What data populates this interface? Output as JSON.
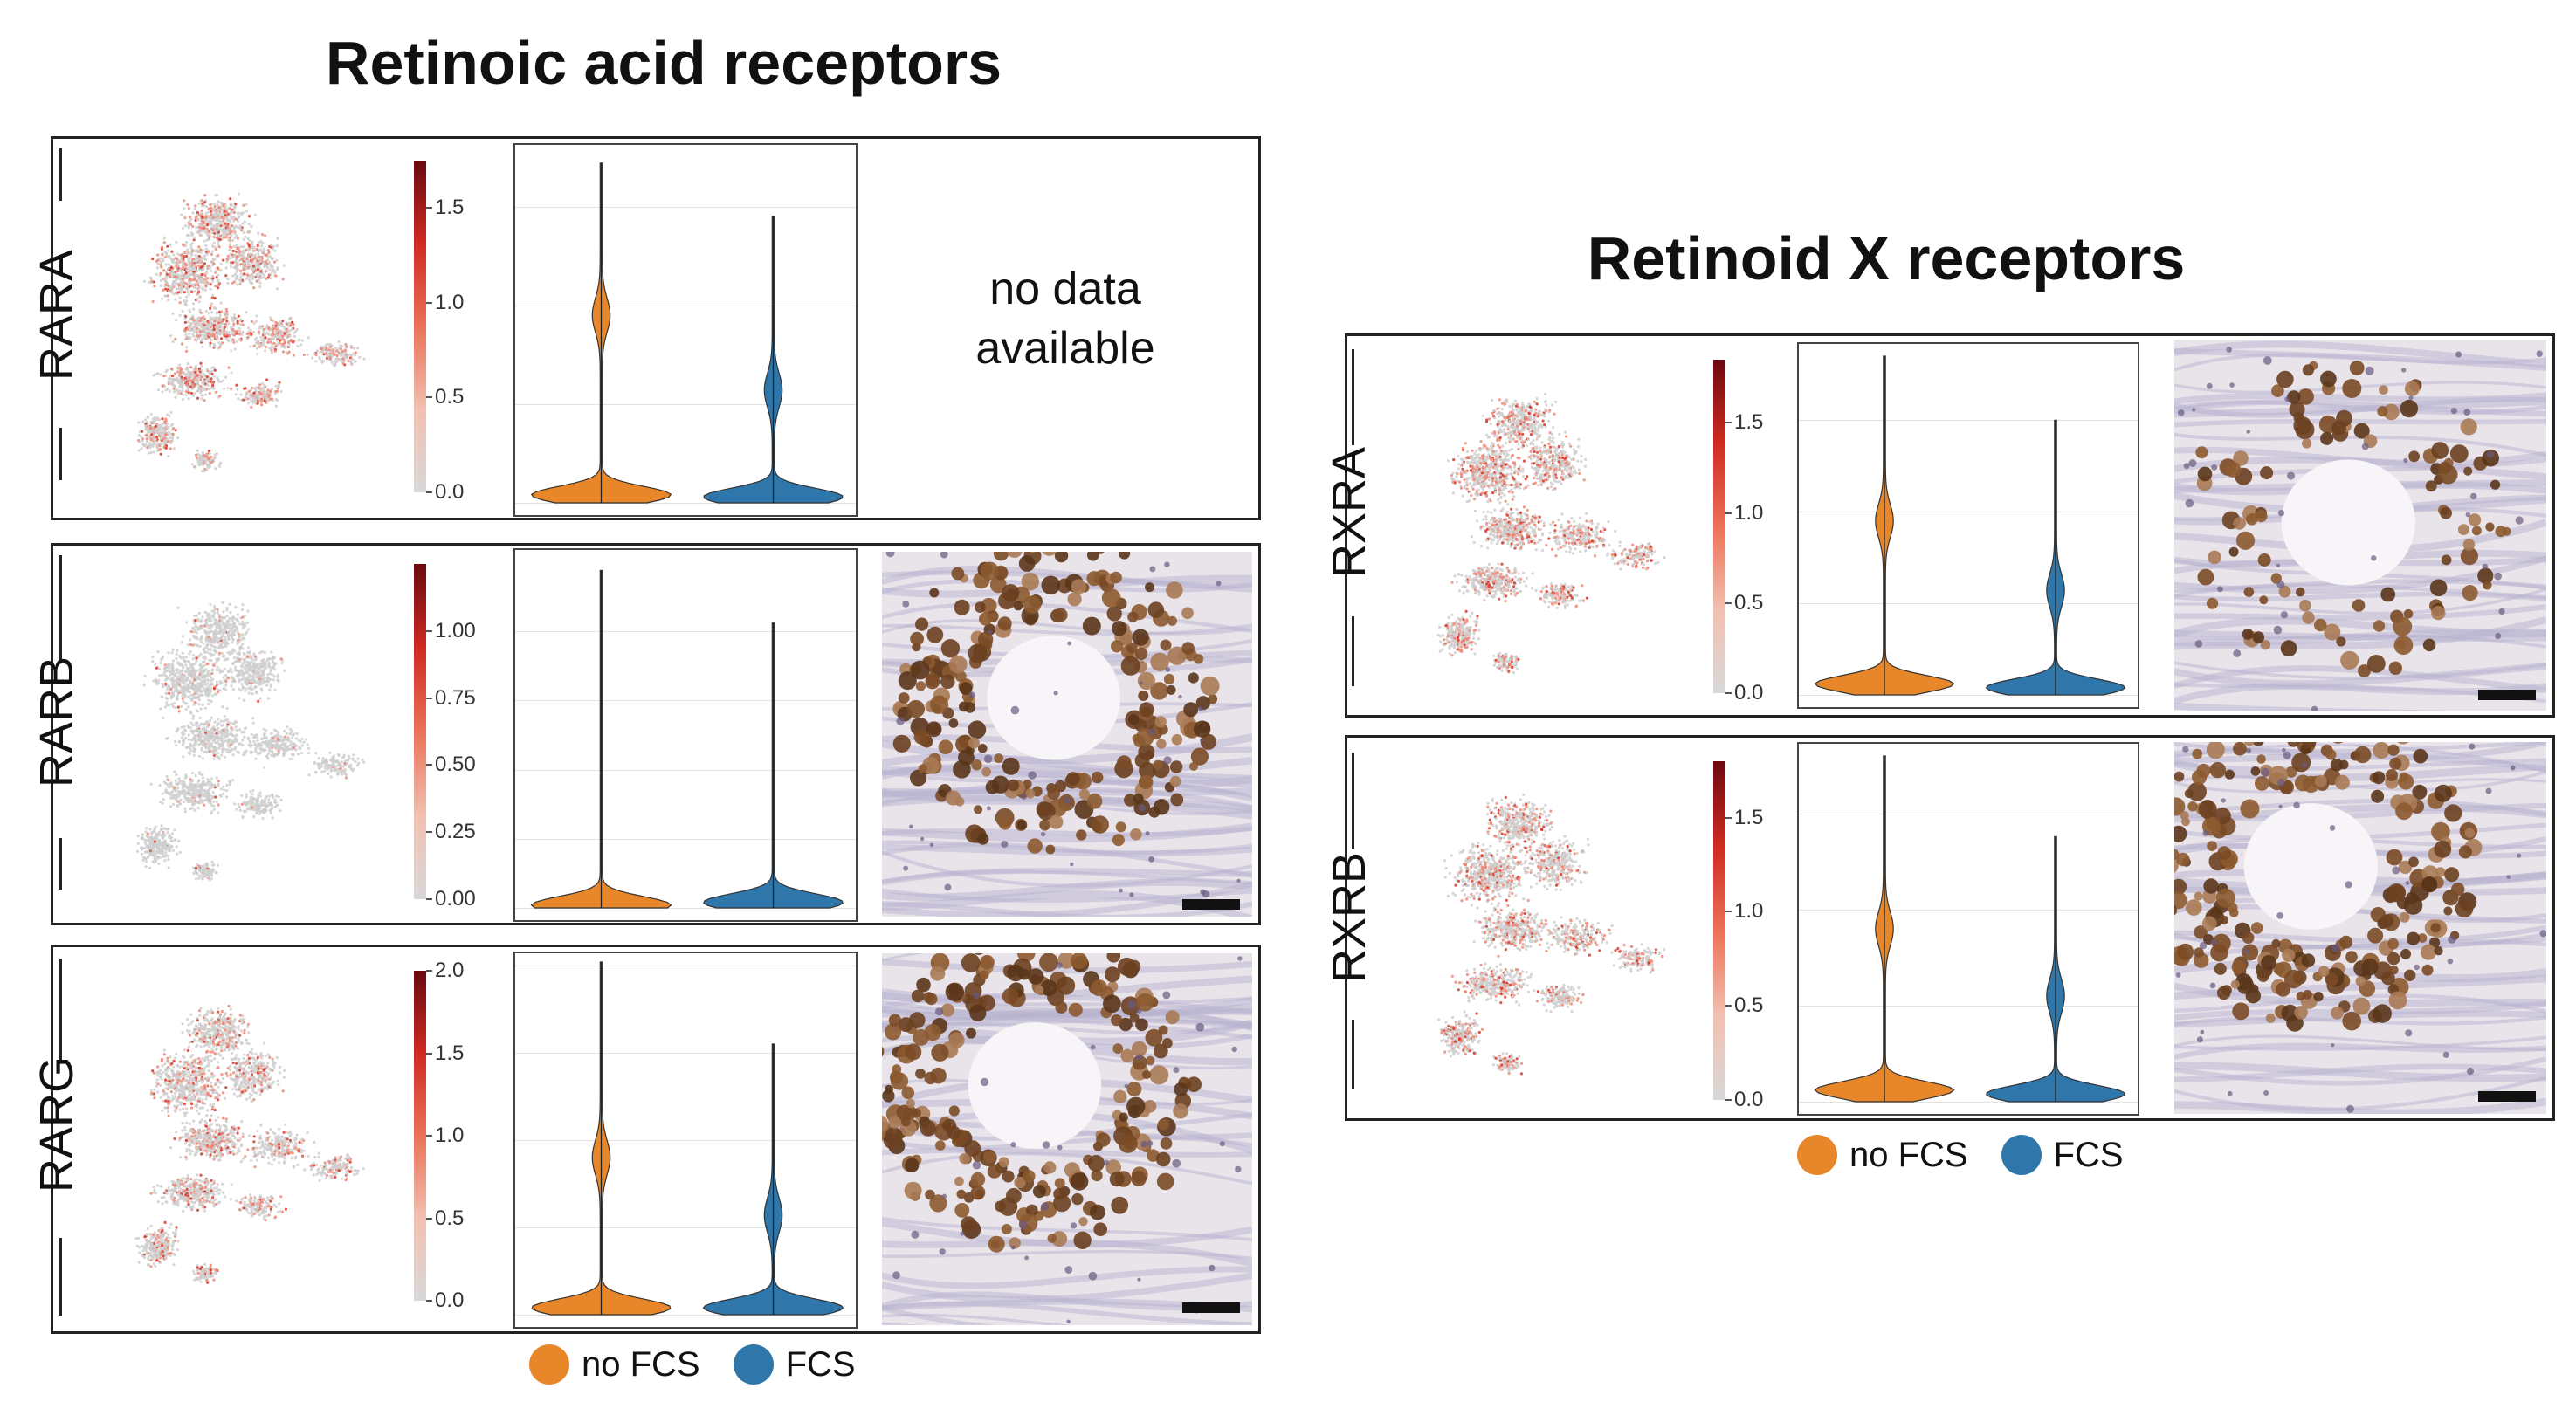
{
  "left_title": "Retinoic acid receptors",
  "right_title": "Retinoid X receptors",
  "colors": {
    "no_fcs": "#e8862a",
    "fcs": "#2f77ab",
    "cmap_low": "#d8d8d8",
    "cmap_high": "#6b0a0f"
  },
  "legend": {
    "no_fcs": "no FCS",
    "fcs": "FCS"
  },
  "panels": [
    {
      "gene": "RARA",
      "ticks": [
        "1.5",
        "1.0",
        "0.5",
        "0.0"
      ],
      "cbar_max": 1.75,
      "no_data": "no data available",
      "no_data_l1": "no data",
      "no_data_l2": "available",
      "umap_intensity": 0.6
    },
    {
      "gene": "RARB",
      "ticks": [
        "1.00",
        "0.75",
        "0.50",
        "0.25",
        "0.00"
      ],
      "cbar_max": 1.25,
      "no_data": "",
      "umap_intensity": 0.08
    },
    {
      "gene": "RARG",
      "ticks": [
        "2.0",
        "1.5",
        "1.0",
        "0.5",
        "0.0"
      ],
      "cbar_max": 2.0,
      "no_data": "",
      "umap_intensity": 0.45
    },
    {
      "gene": "RXRA",
      "ticks": [
        "1.5",
        "1.0",
        "0.5",
        "0.0"
      ],
      "cbar_max": 1.85,
      "no_data": "",
      "umap_intensity": 0.6
    },
    {
      "gene": "RXRB",
      "ticks": [
        "1.5",
        "1.0",
        "0.5",
        "0.0"
      ],
      "cbar_max": 1.8,
      "no_data": "",
      "umap_intensity": 0.5
    }
  ],
  "chart_data": [
    {
      "type": "violin",
      "title": "RARA",
      "categories": [
        "no FCS",
        "FCS"
      ],
      "ylim": [
        0,
        1.75
      ],
      "series": [
        {
          "name": "no FCS",
          "max": 1.72,
          "mode": 0.04,
          "secondary": 0.95
        },
        {
          "name": "FCS",
          "max": 1.45,
          "mode": 0.03,
          "secondary": 0.57
        }
      ]
    },
    {
      "type": "violin",
      "title": "RARB",
      "categories": [
        "no FCS",
        "FCS"
      ],
      "ylim": [
        0,
        1.25
      ],
      "series": [
        {
          "name": "no FCS",
          "max": 1.22,
          "mode": 0.01,
          "secondary": 0.0
        },
        {
          "name": "FCS",
          "max": 1.03,
          "mode": 0.02,
          "secondary": 0.0
        }
      ]
    },
    {
      "type": "violin",
      "title": "RARG",
      "categories": [
        "no FCS",
        "FCS"
      ],
      "ylim": [
        0,
        2.0
      ],
      "series": [
        {
          "name": "no FCS",
          "max": 2.02,
          "mode": 0.04,
          "secondary": 0.9
        },
        {
          "name": "FCS",
          "max": 1.55,
          "mode": 0.04,
          "secondary": 0.57
        }
      ]
    },
    {
      "type": "violin",
      "title": "RXRA",
      "categories": [
        "no FCS",
        "FCS"
      ],
      "ylim": [
        0,
        1.85
      ],
      "series": [
        {
          "name": "no FCS",
          "max": 1.85,
          "mode": 0.06,
          "secondary": 0.95
        },
        {
          "name": "FCS",
          "max": 1.5,
          "mode": 0.04,
          "secondary": 0.57
        }
      ]
    },
    {
      "type": "violin",
      "title": "RXRB",
      "categories": [
        "no FCS",
        "FCS"
      ],
      "ylim": [
        0,
        1.8
      ],
      "series": [
        {
          "name": "no FCS",
          "max": 1.8,
          "mode": 0.06,
          "secondary": 0.9
        },
        {
          "name": "FCS",
          "max": 1.38,
          "mode": 0.04,
          "secondary": 0.55
        }
      ]
    }
  ]
}
